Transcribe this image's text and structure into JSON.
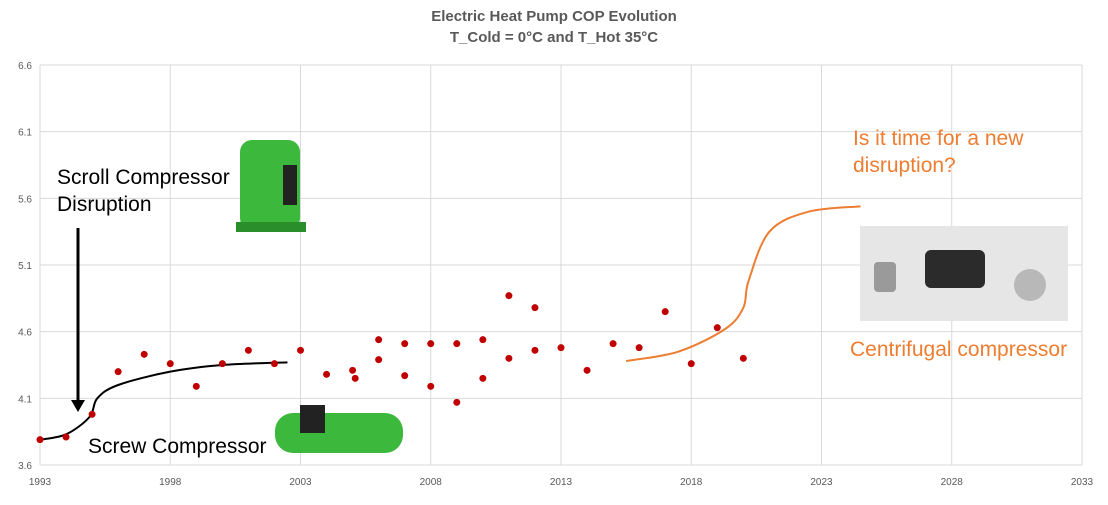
{
  "chart_data": {
    "type": "scatter",
    "title": "Electric Heat Pump COP Evolution",
    "subtitle": "T_Cold = 0°C and T_Hot 35°C",
    "xlabel": "",
    "ylabel": "",
    "xlim": [
      1993,
      2033
    ],
    "ylim": [
      3.6,
      6.6
    ],
    "xticks": [
      1993,
      1998,
      2003,
      2008,
      2013,
      2018,
      2023,
      2028,
      2033
    ],
    "yticks": [
      3.6,
      4.1,
      4.6,
      5.1,
      5.6,
      6.1,
      6.6
    ],
    "grid": true,
    "series": [
      {
        "name": "COP",
        "color": "#C00000",
        "points": [
          [
            1993,
            3.79
          ],
          [
            1994,
            3.81
          ],
          [
            1995,
            3.98
          ],
          [
            1996,
            4.3
          ],
          [
            1997,
            4.43
          ],
          [
            1998,
            4.36
          ],
          [
            1999,
            4.19
          ],
          [
            2000,
            4.36
          ],
          [
            2001,
            4.46
          ],
          [
            2002,
            4.36
          ],
          [
            2003,
            4.46
          ],
          [
            2004,
            4.28
          ],
          [
            2005,
            4.31
          ],
          [
            2005.1,
            4.25
          ],
          [
            2006,
            4.54
          ],
          [
            2006,
            4.39
          ],
          [
            2007,
            4.51
          ],
          [
            2007,
            4.27
          ],
          [
            2008,
            4.51
          ],
          [
            2008,
            4.19
          ],
          [
            2009,
            4.51
          ],
          [
            2009,
            4.07
          ],
          [
            2010,
            4.54
          ],
          [
            2010,
            4.25
          ],
          [
            2011,
            4.87
          ],
          [
            2011,
            4.4
          ],
          [
            2012,
            4.78
          ],
          [
            2012,
            4.46
          ],
          [
            2013,
            4.48
          ],
          [
            2014,
            4.31
          ],
          [
            2015,
            4.51
          ],
          [
            2016,
            4.48
          ],
          [
            2017,
            4.75
          ],
          [
            2018,
            4.36
          ],
          [
            2019,
            4.63
          ],
          [
            2020,
            4.4
          ]
        ]
      }
    ],
    "trend_lines": [
      {
        "name": "scroll-screw-trend",
        "color": "#000000",
        "points": [
          [
            1993,
            3.79
          ],
          [
            1994,
            3.83
          ],
          [
            1994.9,
            3.96
          ],
          [
            1995.2,
            4.1
          ],
          [
            1996,
            4.2
          ],
          [
            1998,
            4.3
          ],
          [
            2000,
            4.35
          ],
          [
            2002.5,
            4.37
          ]
        ]
      },
      {
        "name": "centrifugal-trend",
        "color": "#ED7D31",
        "points": [
          [
            2015.5,
            4.38
          ],
          [
            2017.5,
            4.45
          ],
          [
            2019.3,
            4.62
          ],
          [
            2020,
            4.78
          ],
          [
            2020.2,
            4.98
          ],
          [
            2021,
            5.35
          ],
          [
            2022.5,
            5.5
          ],
          [
            2024.5,
            5.54
          ]
        ]
      }
    ],
    "annotations": {
      "scroll": [
        "Scroll Compressor",
        "Disruption"
      ],
      "screw": "Screw Compressor",
      "question": [
        "Is it time for a new",
        "disruption?"
      ],
      "centrifugal": "Centrifugal compressor"
    }
  }
}
